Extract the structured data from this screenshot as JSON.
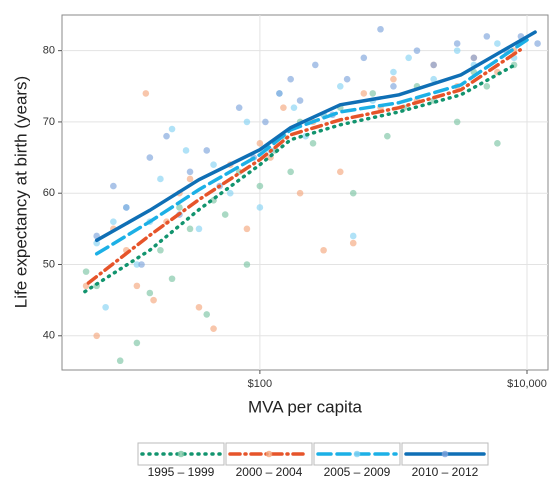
{
  "chart_data": {
    "type": "scatter",
    "x_label": "MVA per capita",
    "y_label": "Life expectancy at birth (years)",
    "log_x": true,
    "grid": true,
    "legend": "bottom",
    "xlim": [
      3.3,
      14360
    ],
    "ylim": [
      35.2,
      85
    ],
    "xticks": [
      {
        "value": 100,
        "label": "$100"
      },
      {
        "value": 10000,
        "label": "$10,000"
      }
    ],
    "yticks": [
      40,
      50,
      60,
      70,
      80
    ],
    "series": [
      {
        "name": "1995 – 1999",
        "color": "#12946e",
        "point_color": "#7cc5a4",
        "linestyle": "dotted",
        "x": [
          5,
          6,
          9,
          12,
          15,
          18,
          22,
          25,
          30,
          40,
          45,
          55,
          70,
          80,
          100,
          130,
          150,
          170,
          200,
          250,
          300,
          400,
          500,
          700,
          900,
          1200,
          1500,
          2000,
          3000,
          4000,
          5000,
          6000,
          8000
        ],
        "values": [
          49,
          47,
          36.5,
          39,
          46,
          52,
          48,
          58,
          55,
          43,
          59,
          57,
          63,
          50,
          61,
          66,
          68,
          63,
          70,
          67,
          71,
          72,
          60,
          74,
          68,
          72,
          75,
          73,
          70,
          77,
          75,
          67,
          78
        ],
        "trend": {
          "x": [
            4.9,
            15,
            35,
            100,
            170,
            400,
            1100,
            3200,
            8100
          ],
          "values": [
            46.2,
            52,
            57.7,
            64,
            67.5,
            69.6,
            71.4,
            73.8,
            78
          ]
        }
      },
      {
        "name": "2000 – 2004",
        "color": "#e6542a",
        "point_color": "#f4a87e",
        "linestyle": "dashdot",
        "x": [
          5,
          6,
          8,
          10,
          12,
          14,
          16,
          20,
          25,
          30,
          35,
          45,
          60,
          80,
          100,
          120,
          150,
          200,
          250,
          300,
          400,
          500,
          600,
          800,
          1000,
          1500,
          2000,
          3000,
          4000,
          6000,
          8000
        ],
        "values": [
          47,
          40,
          55,
          52,
          47,
          74,
          45,
          56,
          60,
          62,
          44,
          41,
          64,
          55,
          67,
          65,
          72,
          60,
          70,
          52,
          63,
          53,
          74,
          72,
          76,
          73,
          78,
          75,
          79,
          77,
          80
        ],
        "trend": {
          "x": [
            5.2,
            15,
            35,
            100,
            170,
            400,
            1100,
            3200,
            8900
          ],
          "values": [
            47.4,
            54.1,
            59.1,
            64.7,
            68.2,
            70.3,
            72,
            74.5,
            80.1
          ]
        }
      },
      {
        "name": "2005 – 2009",
        "color": "#1cb0e6",
        "point_color": "#86d3f2",
        "linestyle": "dashed",
        "x": [
          6,
          7,
          8,
          10,
          12,
          15,
          18,
          22,
          28,
          35,
          45,
          60,
          80,
          100,
          120,
          140,
          180,
          220,
          300,
          400,
          500,
          700,
          1000,
          1300,
          2000,
          3000,
          4000,
          6000,
          8000
        ],
        "values": [
          53,
          44,
          56,
          58,
          50,
          56,
          62,
          69,
          66,
          55,
          64,
          60,
          70,
          58,
          66,
          74,
          72,
          68,
          71,
          75,
          54,
          73,
          77,
          79,
          76,
          80,
          78,
          81,
          79
        ],
        "trend": {
          "x": [
            6,
            15,
            35,
            100,
            170,
            400,
            1100,
            3200,
            10000
          ],
          "values": [
            51.5,
            56,
            60.5,
            65.4,
            68.9,
            71.4,
            72.7,
            75.2,
            81.5
          ]
        }
      },
      {
        "name": "2010 – 2012",
        "color": "#0f6fb5",
        "point_color": "#7ea4dc",
        "linestyle": "solid",
        "x": [
          6,
          8,
          10,
          13,
          15,
          20,
          25,
          30,
          40,
          50,
          70,
          90,
          110,
          140,
          170,
          200,
          260,
          350,
          450,
          600,
          800,
          1000,
          1500,
          2000,
          3000,
          4000,
          5000,
          7000,
          9000,
          12000
        ],
        "values": [
          54,
          61,
          58,
          50,
          65,
          68,
          57,
          63,
          66,
          61,
          72,
          65,
          70,
          74,
          76,
          73,
          78,
          71,
          76,
          79,
          83,
          75,
          80,
          78,
          81,
          79,
          82,
          80,
          82,
          81
        ],
        "trend": {
          "x": [
            6,
            15,
            35,
            100,
            170,
            400,
            1100,
            3200,
            11500
          ],
          "values": [
            53.4,
            57.6,
            61.9,
            66.1,
            69.2,
            72.4,
            73.8,
            76.6,
            82.6
          ]
        }
      }
    ]
  }
}
